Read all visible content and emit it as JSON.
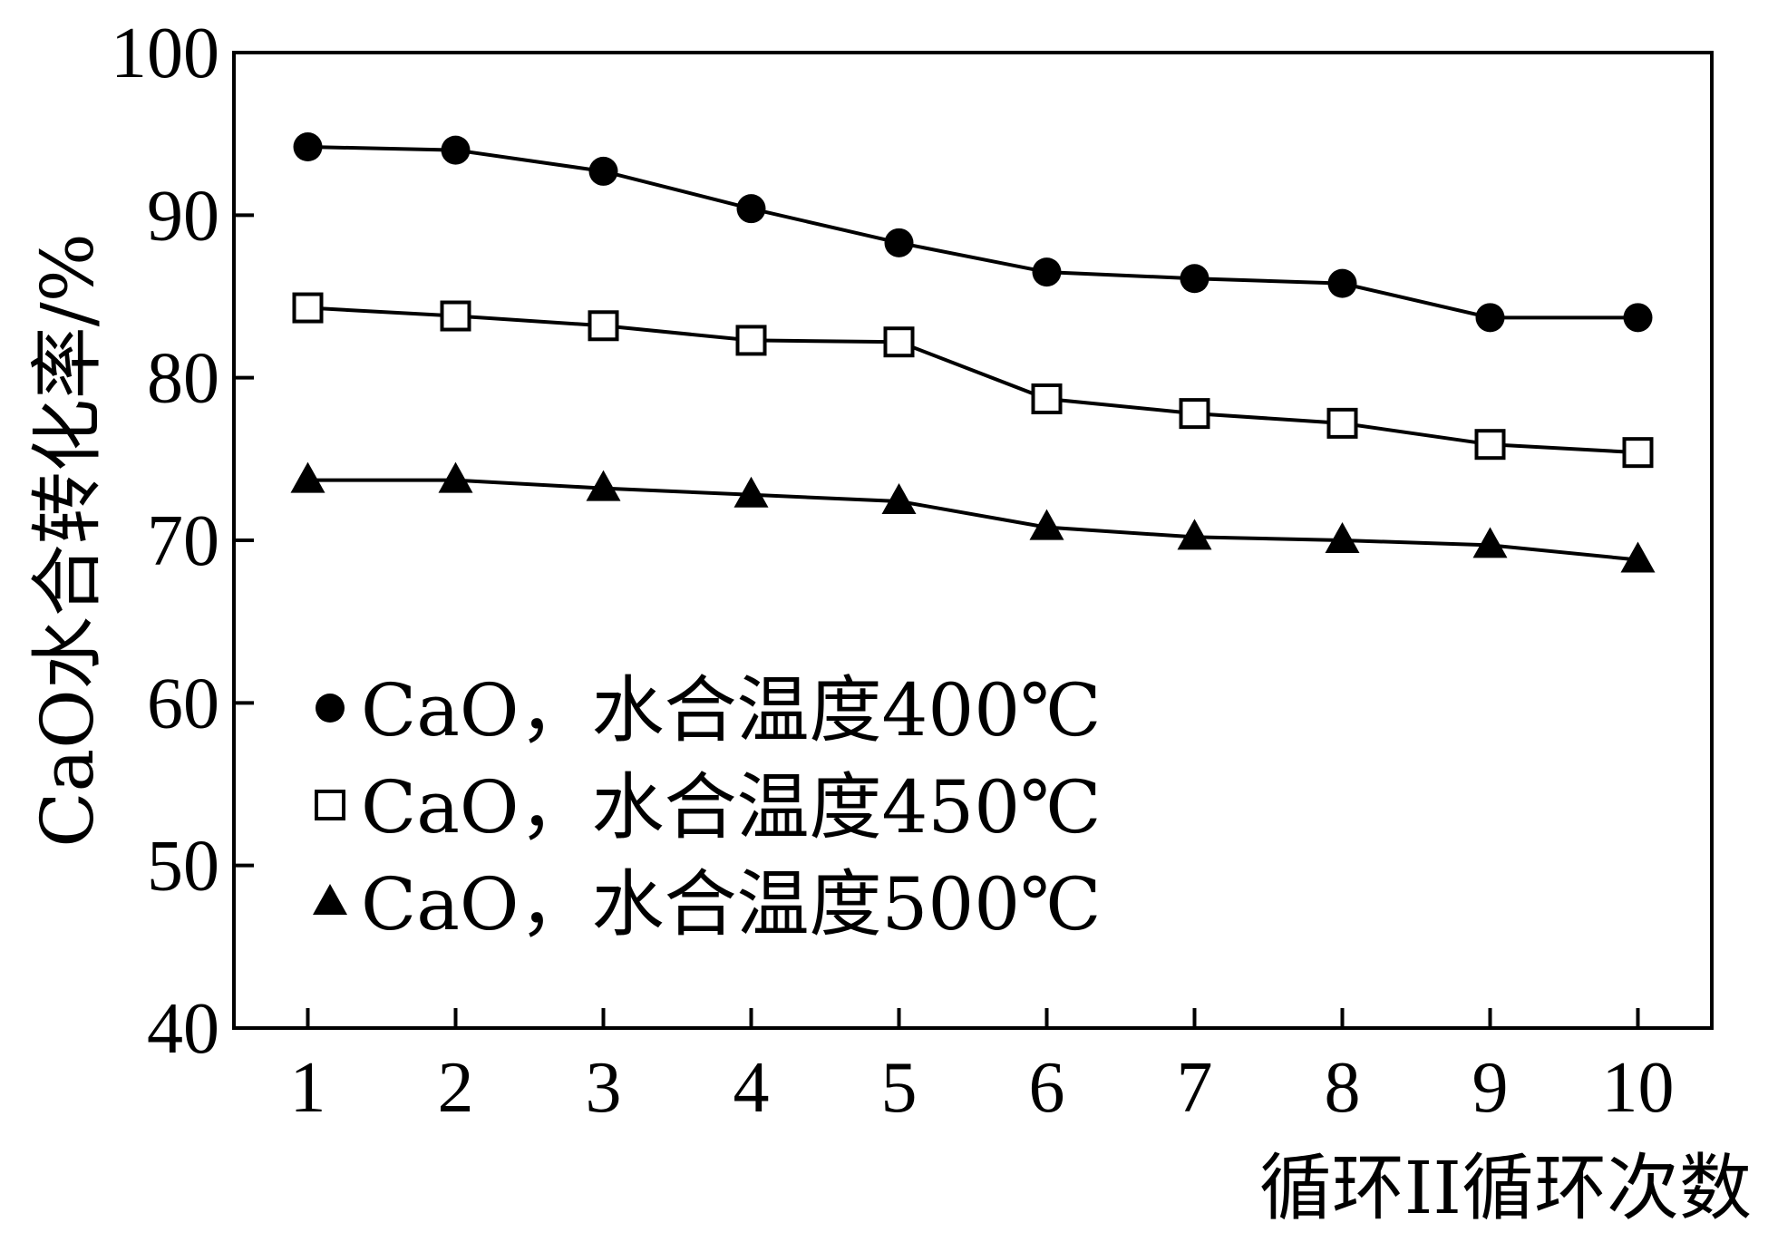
{
  "chart_data": {
    "type": "line",
    "xlabel": "循环II循环次数",
    "ylabel": "CaO水合转化率/%",
    "x": [
      1,
      2,
      3,
      4,
      5,
      6,
      7,
      8,
      9,
      10
    ],
    "xlim": [
      0.5,
      10.5
    ],
    "ylim": [
      40,
      100
    ],
    "xticks": [
      "1",
      "2",
      "3",
      "4",
      "5",
      "6",
      "7",
      "8",
      "9",
      "10"
    ],
    "yticks": [
      "40",
      "50",
      "60",
      "70",
      "80",
      "90",
      "100"
    ],
    "grid": false,
    "legend_position": "lower-left",
    "colors": {
      "line": "#000000",
      "background": "#ffffff"
    },
    "series": [
      {
        "name": "CaO，水合温度400℃",
        "marker": "filled-circle",
        "values": [
          94.2,
          94.0,
          92.7,
          90.4,
          88.3,
          86.5,
          86.1,
          85.8,
          83.7,
          83.7
        ]
      },
      {
        "name": "CaO，水合温度450℃",
        "marker": "open-square",
        "values": [
          84.3,
          83.8,
          83.2,
          82.3,
          82.2,
          78.7,
          77.8,
          77.2,
          75.9,
          75.4
        ]
      },
      {
        "name": "CaO，水合温度500℃",
        "marker": "filled-triangle",
        "values": [
          73.7,
          73.7,
          73.2,
          72.8,
          72.4,
          70.8,
          70.2,
          70.0,
          69.7,
          68.8
        ]
      }
    ]
  }
}
